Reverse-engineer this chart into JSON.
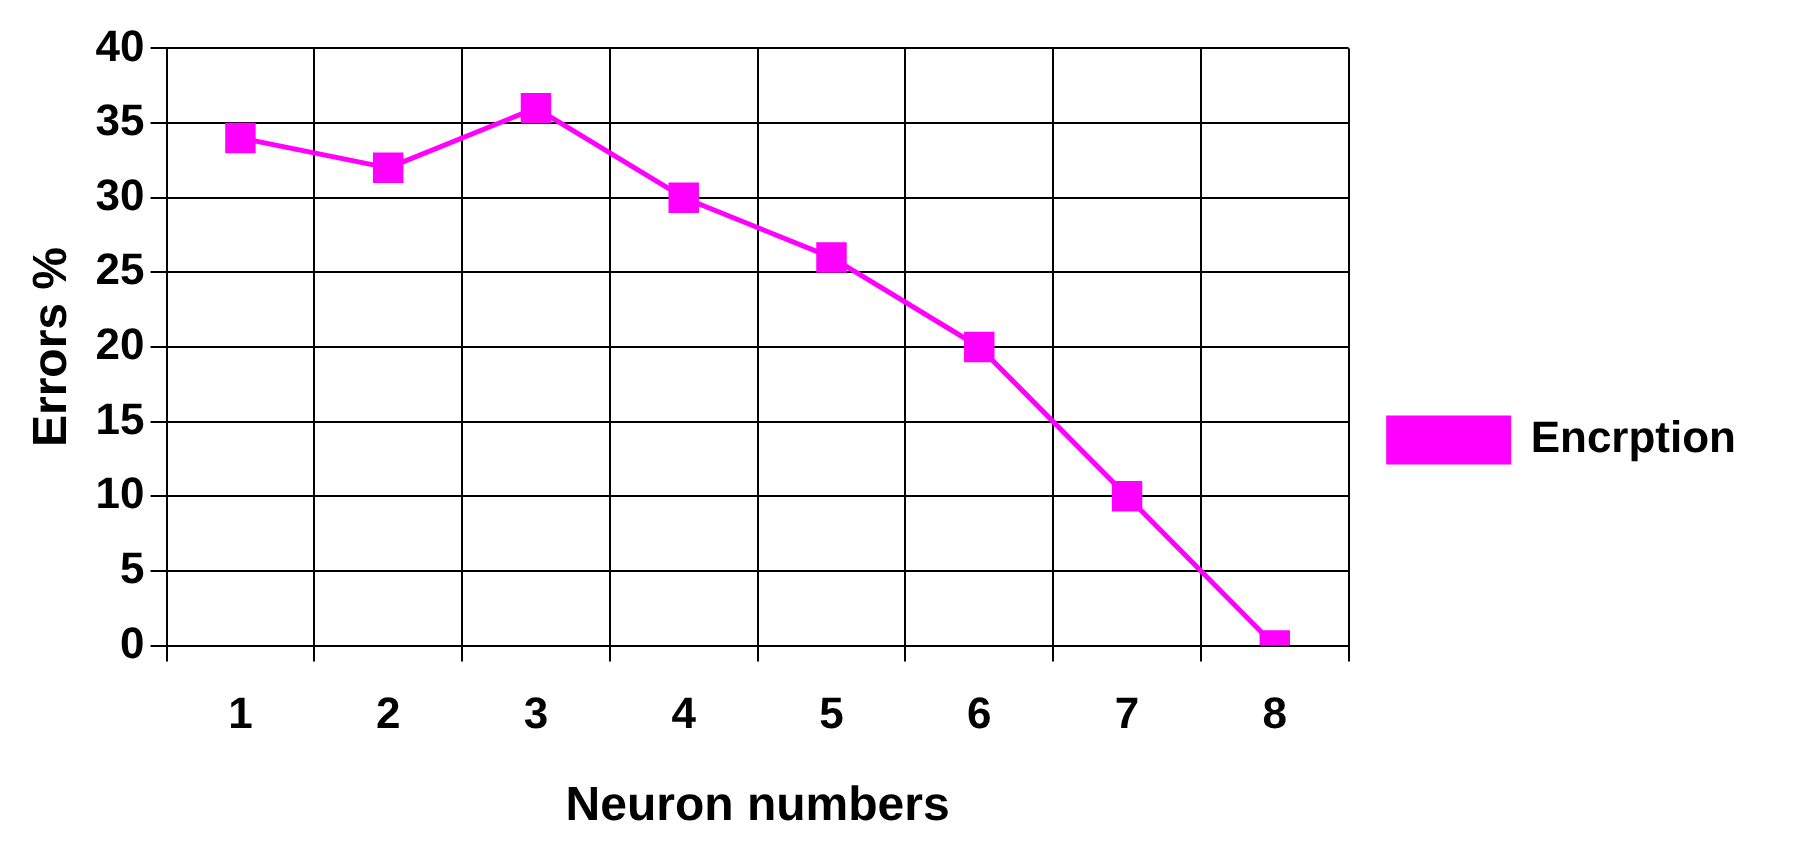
{
  "chart_data": {
    "type": "line",
    "xlabel": "Neuron numbers",
    "ylabel": "Errors %",
    "categories": [
      "1",
      "2",
      "3",
      "4",
      "5",
      "6",
      "7",
      "8"
    ],
    "series": [
      {
        "name": "Encrption",
        "color": "#ff00ff",
        "values": [
          34,
          32,
          36,
          30,
          26,
          20,
          10,
          0
        ]
      }
    ],
    "ylim": [
      0,
      40
    ],
    "yticks": [
      0,
      5,
      10,
      15,
      20,
      25,
      30,
      35,
      40
    ],
    "grid": true,
    "legend": "right",
    "marker": "square",
    "line_style": "solid"
  }
}
